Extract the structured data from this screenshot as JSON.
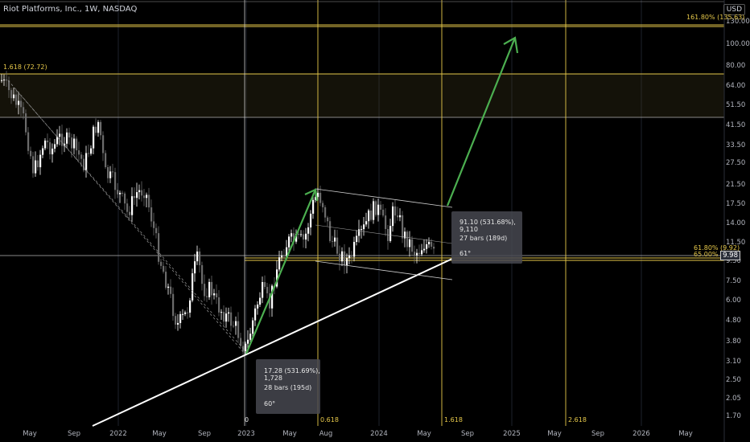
{
  "header": {
    "title": "Riot Platforms, Inc., 1W, NASDAQ",
    "currency": "USD"
  },
  "price_axis": {
    "ticks": [
      "130.00",
      "100.00",
      "80.00",
      "64.00",
      "51.50",
      "41.50",
      "33.50",
      "27.50",
      "21.50",
      "17.50",
      "14.00",
      "11.50",
      "9.50",
      "7.50",
      "6.00",
      "4.80",
      "3.80",
      "3.10",
      "2.50",
      "2.05",
      "1.70"
    ],
    "current_price": "9.98"
  },
  "time_axis": {
    "ticks": [
      "May",
      "Sep",
      "2022",
      "May",
      "Sep",
      "2023",
      "May",
      "Aug",
      "2024",
      "May",
      "Sep",
      "2025",
      "May",
      "Sep",
      "2026",
      "May"
    ]
  },
  "fib_labels": {
    "ext_top": "161.80% (135.63)",
    "level_1618": "1.618 (72.72)",
    "ret_618": "61.80% (9.92)",
    "ret_650": "65.00% (9.37)"
  },
  "fib_time_labels": {
    "zero": "0",
    "t0618": "0.618",
    "t1618": "1.618",
    "t2618": "2.618"
  },
  "measure_1": {
    "change": "17.28 (531.69%), 1,728",
    "bars": "28 bars (195d)",
    "angle": "60°"
  },
  "measure_2": {
    "change": "91.10 (531.68%), 9,110",
    "bars": "27 bars (189d)",
    "angle": "61°"
  },
  "colors": {
    "background": "#000000",
    "fib": "#e6c84a",
    "up_candle": "#ffffff",
    "down_candle": "#6b6b6b",
    "arrow": "#4caf50",
    "trendline": "#ffffff"
  }
}
